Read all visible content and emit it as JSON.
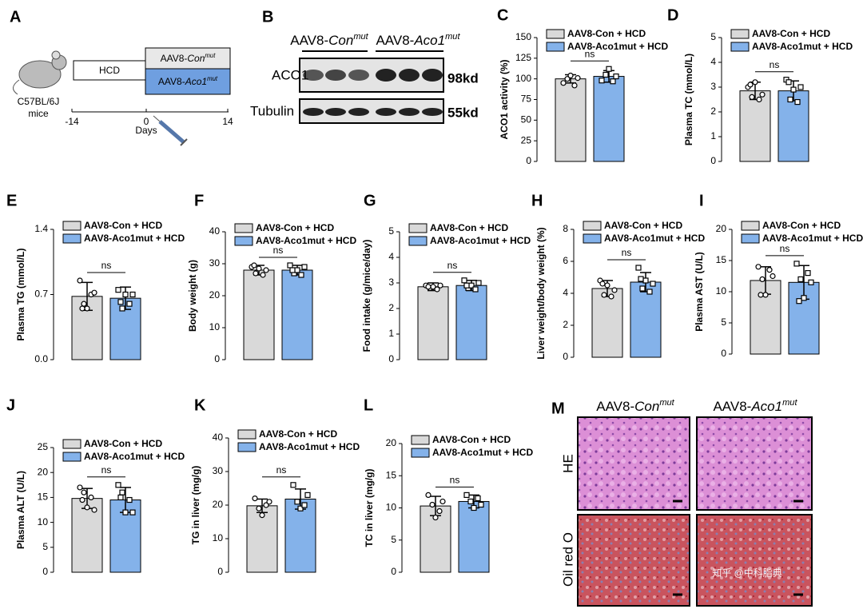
{
  "diagram": {
    "panel": "A",
    "strain": "C57BL/6J",
    "animal": "mice",
    "diet": "HCD",
    "group_con": {
      "prefix": "AAV8-",
      "italic": "Con",
      "sup": "mut"
    },
    "group_aco": {
      "prefix": "AAV8-",
      "italic": "Aco1",
      "sup": "mut"
    },
    "timeline": [
      "-14",
      "0",
      "14"
    ],
    "axis_label": "Days"
  },
  "blot": {
    "panel": "B",
    "header_con": {
      "prefix": "AAV8-",
      "italic": "Con",
      "sup": "mut"
    },
    "header_aco": {
      "prefix": "AAV8-",
      "italic": "Aco1",
      "sup": "mut"
    },
    "rows": [
      {
        "protein": "ACO1",
        "size": "98kd"
      },
      {
        "protein": "Tubulin",
        "size": "55kd"
      }
    ]
  },
  "histology": {
    "panel": "M",
    "header_con": {
      "prefix": "AAV8-",
      "italic": "Con",
      "sup": "mut"
    },
    "header_aco": {
      "prefix": "AAV8-",
      "italic": "Aco1",
      "sup": "mut"
    },
    "rows": [
      "HE",
      "Oil red O"
    ],
    "watermark": "知乎 @中科脂典"
  },
  "chart_data": [
    {
      "type": "bar",
      "panel": "C",
      "ylabel": "ACO1 activity (%)",
      "annotation": "ns",
      "ylim": [
        0,
        150
      ],
      "yticks": [
        0,
        25,
        50,
        75,
        100,
        125,
        150
      ],
      "series": [
        {
          "name": "AAV8-Con + HCD",
          "color": "#d9d9d9",
          "values": [
            100
          ],
          "errors": [
            5
          ],
          "points": [
            [
              95,
              100,
              104,
              92,
              101
            ]
          ]
        },
        {
          "name": "AAV8-Aco1mut + HCD",
          "color": "#84b2ea",
          "values": [
            103
          ],
          "errors": [
            7
          ],
          "points": [
            [
              98,
              105,
              112,
              97,
              103
            ]
          ]
        }
      ]
    },
    {
      "type": "bar",
      "panel": "D",
      "ylabel": "Plasma TC (mmol/L)",
      "annotation": "ns",
      "ylim": [
        0,
        5
      ],
      "yticks": [
        0,
        1,
        2,
        3,
        4,
        5
      ],
      "series": [
        {
          "name": "AAV8-Con + HCD",
          "color": "#d9d9d9",
          "values": [
            2.85
          ],
          "errors": [
            0.35
          ],
          "points": [
            [
              3.0,
              2.6,
              3.2,
              2.5,
              2.7,
              3.1
            ]
          ]
        },
        {
          "name": "AAV8-Aco1mut + HCD",
          "color": "#84b2ea",
          "values": [
            2.85
          ],
          "errors": [
            0.4
          ],
          "points": [
            [
              3.3,
              2.5,
              2.9,
              2.4,
              3.0,
              3.2
            ]
          ]
        }
      ]
    },
    {
      "type": "bar",
      "panel": "E",
      "ylabel": "Plasma TG (mmol/L)",
      "annotation": "ns",
      "ylim": [
        0,
        1.4
      ],
      "yticks": [
        {
          "value": 0,
          "label": "0.0"
        },
        0.7,
        1.4
      ],
      "series": [
        {
          "name": "AAV8-Con + HCD",
          "color": "#d9d9d9",
          "values": [
            0.68
          ],
          "errors": [
            0.15
          ],
          "points": [
            [
              0.85,
              0.6,
              0.55,
              0.7,
              0.72,
              0.55
            ]
          ]
        },
        {
          "name": "AAV8-Aco1mut + HCD",
          "color": "#84b2ea",
          "values": [
            0.66
          ],
          "errors": [
            0.12
          ],
          "points": [
            [
              0.75,
              0.55,
              0.7,
              0.6,
              0.7,
              0.62
            ]
          ]
        }
      ]
    },
    {
      "type": "bar",
      "panel": "F",
      "ylabel": "Body weight (g)",
      "annotation": "ns",
      "ylim": [
        0,
        40
      ],
      "yticks": [
        0,
        10,
        20,
        30,
        40
      ],
      "series": [
        {
          "name": "AAV8-Con + HCD",
          "color": "#d9d9d9",
          "values": [
            28
          ],
          "errors": [
            1.5
          ],
          "points": [
            [
              29,
              27,
              28.5,
              26.5,
              28,
              29.5
            ]
          ]
        },
        {
          "name": "AAV8-Aco1mut + HCD",
          "color": "#84b2ea",
          "values": [
            28
          ],
          "errors": [
            1.5
          ],
          "points": [
            [
              29.5,
              27,
              28,
              26.5,
              29,
              28
            ]
          ]
        }
      ]
    },
    {
      "type": "bar",
      "panel": "G",
      "ylabel": "Food intake (g/mice/day)",
      "annotation": "ns",
      "ylim": [
        0,
        5
      ],
      "yticks": [
        0,
        1,
        2,
        3,
        4,
        5
      ],
      "series": [
        {
          "name": "AAV8-Con + HCD",
          "color": "#d9d9d9",
          "values": [
            2.85
          ],
          "errors": [
            0.15
          ],
          "points": [
            [
              2.9,
              2.8,
              2.85,
              2.75,
              2.9,
              2.85
            ]
          ]
        },
        {
          "name": "AAV8-Aco1mut + HCD",
          "color": "#84b2ea",
          "values": [
            2.9
          ],
          "errors": [
            0.2
          ],
          "points": [
            [
              3.1,
              2.8,
              2.9,
              2.75,
              3.0,
              2.9
            ]
          ]
        }
      ]
    },
    {
      "type": "bar",
      "panel": "H",
      "ylabel": "Liver weight/body weight (%)",
      "annotation": "ns",
      "ylim": [
        0,
        8
      ],
      "yticks": [
        0,
        2,
        4,
        6,
        8
      ],
      "series": [
        {
          "name": "AAV8-Con + HCD",
          "color": "#d9d9d9",
          "values": [
            4.3
          ],
          "errors": [
            0.5
          ],
          "points": [
            [
              4.8,
              3.9,
              4.5,
              3.8,
              4.2,
              4.6
            ]
          ]
        },
        {
          "name": "AAV8-Aco1mut + HCD",
          "color": "#84b2ea",
          "values": [
            4.7
          ],
          "errors": [
            0.6
          ],
          "points": [
            [
              5.6,
              4.3,
              4.8,
              4.1,
              4.6,
              4.9
            ]
          ]
        }
      ]
    },
    {
      "type": "bar",
      "panel": "I",
      "ylabel": "Plasma AST (U/L)",
      "annotation": "ns",
      "ylim": [
        0,
        20
      ],
      "yticks": [
        0,
        5,
        10,
        15,
        20
      ],
      "series": [
        {
          "name": "AAV8-Con + HCD",
          "color": "#d9d9d9",
          "values": [
            11.8
          ],
          "errors": [
            2.2
          ],
          "points": [
            [
              14,
              12,
              9.5,
              13.5,
              12.5,
              9.5
            ]
          ]
        },
        {
          "name": "AAV8-Aco1mut + HCD",
          "color": "#84b2ea",
          "values": [
            11.5
          ],
          "errors": [
            2.7
          ],
          "points": [
            [
              14.5,
              12,
              9,
              13,
              11.5,
              8.5
            ]
          ]
        }
      ]
    },
    {
      "type": "bar",
      "panel": "J",
      "ylabel": "Plasma ALT (U/L)",
      "annotation": "ns",
      "ylim": [
        0,
        25
      ],
      "yticks": [
        0,
        5,
        10,
        15,
        20,
        25
      ],
      "series": [
        {
          "name": "AAV8-Con + HCD",
          "color": "#d9d9d9",
          "values": [
            14.8
          ],
          "errors": [
            2
          ],
          "points": [
            [
              17,
              16,
              13,
              15,
              12.5,
              14.5
            ]
          ]
        },
        {
          "name": "AAV8-Aco1mut + HCD",
          "color": "#84b2ea",
          "values": [
            14.5
          ],
          "errors": [
            2.5
          ],
          "points": [
            [
              17.5,
              16,
              12,
              14.5,
              12,
              15
            ]
          ]
        }
      ]
    },
    {
      "type": "bar",
      "panel": "K",
      "ylabel": "TG in liver (mg/g)",
      "annotation": "ns",
      "ylim": [
        0,
        40
      ],
      "yticks": [
        0,
        10,
        20,
        30,
        40
      ],
      "series": [
        {
          "name": "AAV8-Con + HCD",
          "color": "#d9d9d9",
          "values": [
            19.8
          ],
          "errors": [
            2
          ],
          "points": [
            [
              22,
              19,
              17,
              20,
              21
            ]
          ]
        },
        {
          "name": "AAV8-Aco1mut + HCD",
          "color": "#84b2ea",
          "values": [
            21.8
          ],
          "errors": [
            3
          ],
          "points": [
            [
              26,
              21,
              19,
              20,
              23
            ]
          ]
        }
      ]
    },
    {
      "type": "bar",
      "panel": "L",
      "ylabel": "TC in liver (mg/g)",
      "annotation": "ns",
      "ylim": [
        0,
        20
      ],
      "yticks": [
        0,
        5,
        10,
        15,
        20
      ],
      "series": [
        {
          "name": "AAV8-Con + HCD",
          "color": "#d9d9d9",
          "values": [
            10.3
          ],
          "errors": [
            1.5
          ],
          "points": [
            [
              12,
              10.5,
              8.5,
              9.5,
              11
            ]
          ]
        },
        {
          "name": "AAV8-Aco1mut + HCD",
          "color": "#84b2ea",
          "values": [
            11
          ],
          "errors": [
            1
          ],
          "points": [
            [
              12,
              11,
              10,
              11.5,
              10.5
            ]
          ]
        }
      ]
    }
  ]
}
